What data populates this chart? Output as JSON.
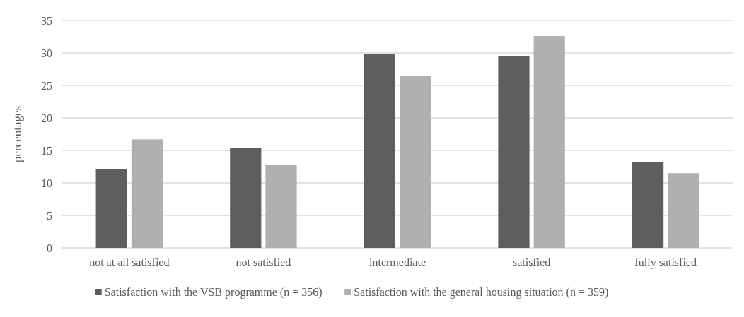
{
  "chart_data": {
    "type": "bar",
    "ylabel": "percentages",
    "categories": [
      "not at all satisfied",
      "not satisfied",
      "intermediate",
      "satisfied",
      "fully satisfied"
    ],
    "series": [
      {
        "name": "Satisfaction with the VSB programme (n = 356)",
        "color": "#5e5e5e",
        "values": [
          12.1,
          15.4,
          29.8,
          29.5,
          13.2
        ]
      },
      {
        "name": "Satisfaction with the general housing situation (n = 359)",
        "color": "#b0b0b0",
        "values": [
          16.7,
          12.8,
          26.5,
          32.6,
          11.5
        ]
      }
    ],
    "ylim": [
      0,
      35
    ],
    "yticks": [
      0,
      5,
      10,
      15,
      20,
      25,
      30,
      35
    ],
    "grid": "y",
    "legend": "bottom"
  }
}
